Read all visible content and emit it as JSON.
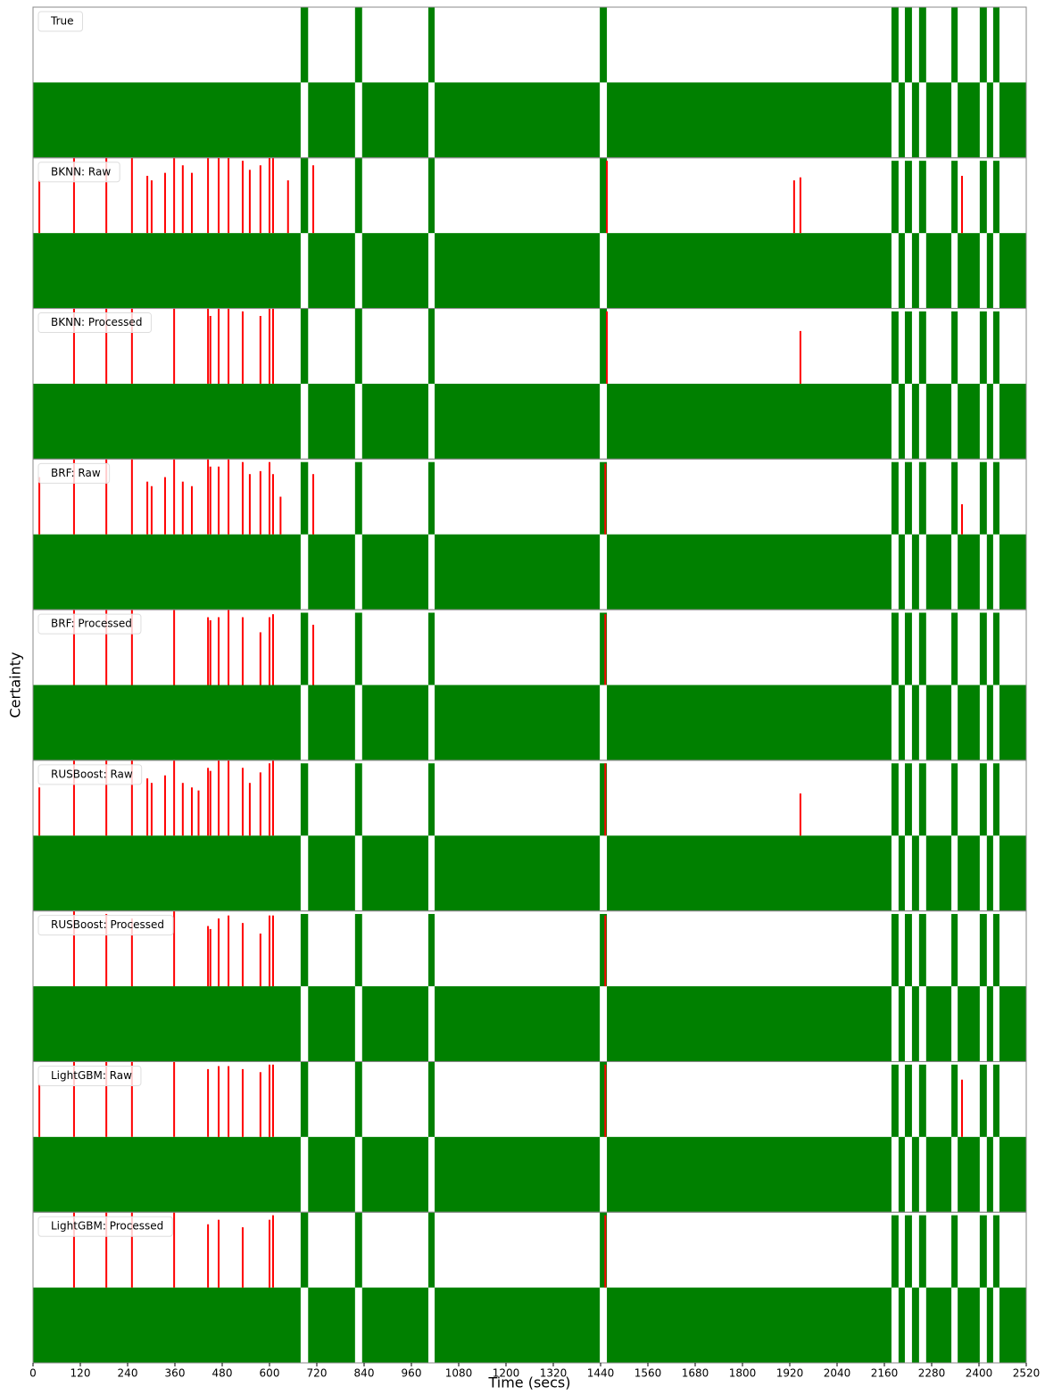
{
  "chart_data": [
    {
      "type": "band",
      "label": "True",
      "ylabel": "Certainty",
      "xlim": [
        0,
        2520
      ],
      "ylim": [
        0,
        1
      ],
      "series": [
        {
          "color": "green",
          "x": [
            0,
            679,
            698,
            817,
            835,
            1003,
            1019,
            1438,
            1456,
            2178,
            2196,
            2212,
            2230,
            2248,
            2266,
            2330,
            2346,
            2402,
            2420,
            2436,
            2452
          ],
          "values": [
            0.5,
            1,
            0.5,
            1,
            0.5,
            1,
            0.5,
            1,
            0.5,
            1,
            0.5,
            1,
            0.5,
            1,
            0.5,
            1,
            0.5,
            1,
            0.5,
            1,
            0.5
          ]
        },
        {
          "color": "red",
          "x": [],
          "values": []
        }
      ]
    },
    {
      "type": "band",
      "label": "BKNN: Raw",
      "xlim": [
        0,
        2520
      ],
      "ylim": [
        0,
        1
      ],
      "series": [
        {
          "color": "green",
          "x": [
            0,
            679,
            698,
            817,
            835,
            1003,
            1019,
            1438,
            1456,
            2178,
            2196,
            2212,
            2230,
            2248,
            2266,
            2330,
            2346,
            2402,
            2420,
            2436,
            2452
          ],
          "values": [
            0.5,
            1,
            0.5,
            1,
            0.5,
            1,
            0.5,
            1,
            0.5,
            0.98,
            0.5,
            0.98,
            0.5,
            0.98,
            0.5,
            0.98,
            0.5,
            0.98,
            0.5,
            0.98,
            0.5
          ]
        },
        {
          "color": "red",
          "x": [
            16,
            104,
            186,
            251,
            290,
            301,
            335,
            358,
            380,
            403,
            444,
            471,
            496,
            532,
            550,
            577,
            600,
            609,
            647,
            711,
            1456,
            1931,
            1947,
            2357
          ],
          "values": [
            0.85,
            1,
            1,
            1,
            0.88,
            0.85,
            0.9,
            1,
            0.95,
            0.9,
            1,
            1,
            1,
            0.98,
            0.92,
            0.95,
            1,
            1,
            0.85,
            0.95,
            0.98,
            0.85,
            0.87,
            0.88
          ]
        }
      ]
    },
    {
      "type": "band",
      "label": "BKNN: Processed",
      "xlim": [
        0,
        2520
      ],
      "ylim": [
        0,
        1
      ],
      "series": [
        {
          "color": "green",
          "x": [
            0,
            679,
            698,
            817,
            835,
            1003,
            1019,
            1438,
            1456,
            2178,
            2196,
            2212,
            2230,
            2248,
            2266,
            2330,
            2346,
            2402,
            2420,
            2436,
            2452
          ],
          "values": [
            0.5,
            1,
            0.5,
            1,
            0.5,
            1,
            0.5,
            1,
            0.5,
            0.98,
            0.5,
            0.98,
            0.5,
            0.98,
            0.5,
            0.98,
            0.5,
            0.98,
            0.5,
            0.98,
            0.5
          ]
        },
        {
          "color": "red",
          "x": [
            104,
            186,
            251,
            358,
            444,
            450,
            471,
            496,
            532,
            577,
            600,
            609,
            1456,
            1947
          ],
          "values": [
            1,
            1,
            1,
            1,
            1,
            0.95,
            1,
            1,
            0.98,
            0.95,
            1,
            1,
            0.98,
            0.85
          ]
        }
      ]
    },
    {
      "type": "band",
      "label": "BRF: Raw",
      "xlim": [
        0,
        2520
      ],
      "ylim": [
        0,
        1
      ],
      "series": [
        {
          "color": "green",
          "x": [
            0,
            679,
            698,
            817,
            835,
            1003,
            1019,
            1438,
            1456,
            2178,
            2196,
            2212,
            2230,
            2248,
            2266,
            2330,
            2346,
            2402,
            2420,
            2436,
            2452
          ],
          "values": [
            0.5,
            0.98,
            0.5,
            0.98,
            0.5,
            0.98,
            0.5,
            0.98,
            0.5,
            0.98,
            0.5,
            0.98,
            0.5,
            0.98,
            0.5,
            0.98,
            0.5,
            0.98,
            0.5,
            0.98,
            0.5
          ]
        },
        {
          "color": "red",
          "x": [
            16,
            104,
            186,
            251,
            290,
            301,
            335,
            358,
            380,
            403,
            444,
            450,
            471,
            496,
            532,
            550,
            577,
            600,
            609,
            628,
            711,
            1452,
            2357
          ],
          "values": [
            0.88,
            1,
            1,
            1,
            0.85,
            0.82,
            0.88,
            1,
            0.85,
            0.82,
            1,
            0.95,
            0.95,
            1,
            0.98,
            0.9,
            0.92,
            0.98,
            0.9,
            0.75,
            0.9,
            0.97,
            0.7
          ]
        }
      ]
    },
    {
      "type": "band",
      "label": "BRF: Processed",
      "xlim": [
        0,
        2520
      ],
      "ylim": [
        0,
        1
      ],
      "series": [
        {
          "color": "green",
          "x": [
            0,
            679,
            698,
            817,
            835,
            1003,
            1019,
            1438,
            1456,
            2178,
            2196,
            2212,
            2230,
            2248,
            2266,
            2330,
            2346,
            2402,
            2420,
            2436,
            2452
          ],
          "values": [
            0.5,
            0.98,
            0.5,
            0.98,
            0.5,
            0.98,
            0.5,
            0.98,
            0.5,
            0.98,
            0.5,
            0.98,
            0.5,
            0.98,
            0.5,
            0.98,
            0.5,
            0.98,
            0.5,
            0.98,
            0.5
          ]
        },
        {
          "color": "red",
          "x": [
            104,
            186,
            251,
            358,
            444,
            450,
            471,
            496,
            532,
            577,
            600,
            609,
            711,
            1452
          ],
          "values": [
            1,
            1,
            1,
            1,
            0.95,
            0.93,
            0.95,
            1,
            0.95,
            0.85,
            0.95,
            0.97,
            0.9,
            0.97
          ]
        }
      ]
    },
    {
      "type": "band",
      "label": "RUSBoost: Raw",
      "xlim": [
        0,
        2520
      ],
      "ylim": [
        0,
        1
      ],
      "series": [
        {
          "color": "green",
          "x": [
            0,
            679,
            698,
            817,
            835,
            1003,
            1019,
            1438,
            1456,
            2178,
            2196,
            2212,
            2230,
            2248,
            2266,
            2330,
            2346,
            2402,
            2420,
            2436,
            2452
          ],
          "values": [
            0.5,
            0.98,
            0.5,
            0.98,
            0.5,
            0.98,
            0.5,
            0.98,
            0.5,
            0.98,
            0.5,
            0.98,
            0.5,
            0.98,
            0.5,
            0.98,
            0.5,
            0.98,
            0.5,
            0.98,
            0.5
          ]
        },
        {
          "color": "red",
          "x": [
            16,
            104,
            186,
            251,
            290,
            301,
            335,
            358,
            380,
            403,
            420,
            444,
            450,
            471,
            496,
            532,
            550,
            577,
            600,
            609,
            1452,
            1947
          ],
          "values": [
            0.82,
            1,
            1,
            1,
            0.88,
            0.85,
            0.9,
            1,
            0.85,
            0.82,
            0.8,
            0.95,
            0.93,
            1,
            1,
            0.95,
            0.85,
            0.92,
            0.98,
            1,
            0.98,
            0.78
          ]
        }
      ]
    },
    {
      "type": "band",
      "label": "RUSBoost: Processed",
      "xlim": [
        0,
        2520
      ],
      "ylim": [
        0,
        1
      ],
      "series": [
        {
          "color": "green",
          "x": [
            0,
            679,
            698,
            817,
            835,
            1003,
            1019,
            1438,
            1456,
            2178,
            2196,
            2212,
            2230,
            2248,
            2266,
            2330,
            2346,
            2402,
            2420,
            2436,
            2452
          ],
          "values": [
            0.5,
            0.98,
            0.5,
            0.98,
            0.5,
            0.98,
            0.5,
            0.98,
            0.5,
            0.98,
            0.5,
            0.98,
            0.5,
            0.98,
            0.5,
            0.98,
            0.5,
            0.98,
            0.5,
            0.98,
            0.5
          ]
        },
        {
          "color": "red",
          "x": [
            104,
            186,
            251,
            358,
            444,
            450,
            471,
            496,
            532,
            577,
            600,
            609,
            1452
          ],
          "values": [
            1,
            0.98,
            0.95,
            1,
            0.9,
            0.88,
            0.95,
            0.97,
            0.92,
            0.85,
            0.97,
            0.97,
            0.97
          ]
        }
      ]
    },
    {
      "type": "band",
      "label": "LightGBM: Raw",
      "xlim": [
        0,
        2520
      ],
      "ylim": [
        0,
        1
      ],
      "series": [
        {
          "color": "green",
          "x": [
            0,
            679,
            698,
            817,
            835,
            1003,
            1019,
            1438,
            1456,
            2178,
            2196,
            2212,
            2230,
            2248,
            2266,
            2330,
            2346,
            2402,
            2420,
            2436,
            2452
          ],
          "values": [
            0.5,
            1,
            0.5,
            1,
            0.5,
            1,
            0.5,
            1,
            0.5,
            0.98,
            0.5,
            0.98,
            0.5,
            0.98,
            0.5,
            0.98,
            0.5,
            0.98,
            0.5,
            0.98,
            0.5
          ]
        },
        {
          "color": "red",
          "x": [
            16,
            104,
            186,
            251,
            358,
            444,
            471,
            496,
            532,
            577,
            600,
            609,
            1452,
            2357
          ],
          "values": [
            0.85,
            1,
            1,
            1,
            1,
            0.95,
            0.97,
            0.97,
            0.95,
            0.93,
            0.98,
            0.98,
            0.98,
            0.88
          ]
        }
      ]
    },
    {
      "type": "band",
      "label": "LightGBM: Processed",
      "xlabel": "Time (secs)",
      "xlim": [
        0,
        2520
      ],
      "ylim": [
        0,
        1
      ],
      "xticks": [
        0,
        120,
        240,
        360,
        480,
        600,
        720,
        840,
        960,
        1080,
        1200,
        1320,
        1440,
        1560,
        1680,
        1800,
        1920,
        2040,
        2160,
        2280,
        2400,
        2520
      ],
      "series": [
        {
          "color": "green",
          "x": [
            0,
            679,
            698,
            817,
            835,
            1003,
            1019,
            1438,
            1456,
            2178,
            2196,
            2212,
            2230,
            2248,
            2266,
            2330,
            2346,
            2402,
            2420,
            2436,
            2452
          ],
          "values": [
            0.5,
            1,
            0.5,
            1,
            0.5,
            1,
            0.5,
            1,
            0.5,
            0.98,
            0.5,
            0.98,
            0.5,
            0.98,
            0.5,
            0.98,
            0.5,
            0.98,
            0.5,
            0.98,
            0.5
          ]
        },
        {
          "color": "red",
          "x": [
            104,
            186,
            251,
            358,
            444,
            471,
            532,
            600,
            609,
            1452
          ],
          "values": [
            1,
            1,
            1,
            1,
            0.92,
            0.95,
            0.9,
            0.95,
            0.98,
            0.98
          ]
        }
      ]
    }
  ]
}
